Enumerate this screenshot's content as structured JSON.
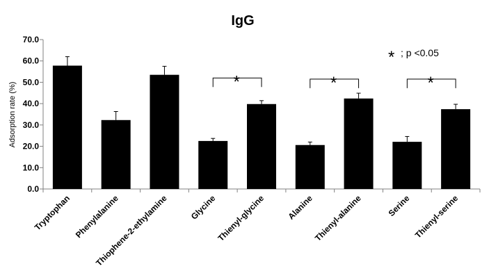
{
  "chart_data": {
    "type": "bar",
    "title": "IgG",
    "xlabel": "",
    "ylabel": "Adsorption rate (%)",
    "ylim": [
      0,
      70
    ],
    "yticks": [
      "0.0",
      "10.0",
      "20.0",
      "30.0",
      "40.0",
      "50.0",
      "60.0",
      "70.0"
    ],
    "grid": false,
    "categories": [
      "Tryptophan",
      "Phenylalanine",
      "Thiophene-2-ethylamine",
      "Glycine",
      "Thienyl-glycine",
      "Alanine",
      "Thienyl-alanine",
      "Serine",
      "Thienyl-serine"
    ],
    "values": [
      57.8,
      32.3,
      53.5,
      22.5,
      39.8,
      20.6,
      42.4,
      22.1,
      37.4
    ],
    "errors": [
      4.2,
      4.0,
      4.0,
      1.2,
      1.6,
      1.4,
      2.5,
      2.5,
      2.3
    ],
    "bar_color": "#000000",
    "significance": {
      "brackets": [
        {
          "from": "Glycine",
          "to": "Thienyl-glycine",
          "y": 52.0,
          "mark": "*"
        },
        {
          "from": "Alanine",
          "to": "Thienyl-alanine",
          "y": 51.5,
          "mark": "*"
        },
        {
          "from": "Serine",
          "to": "Thienyl-serine",
          "y": 51.5,
          "mark": "*"
        }
      ],
      "legend_symbol": "*",
      "legend_text": "; p <0.05"
    }
  }
}
